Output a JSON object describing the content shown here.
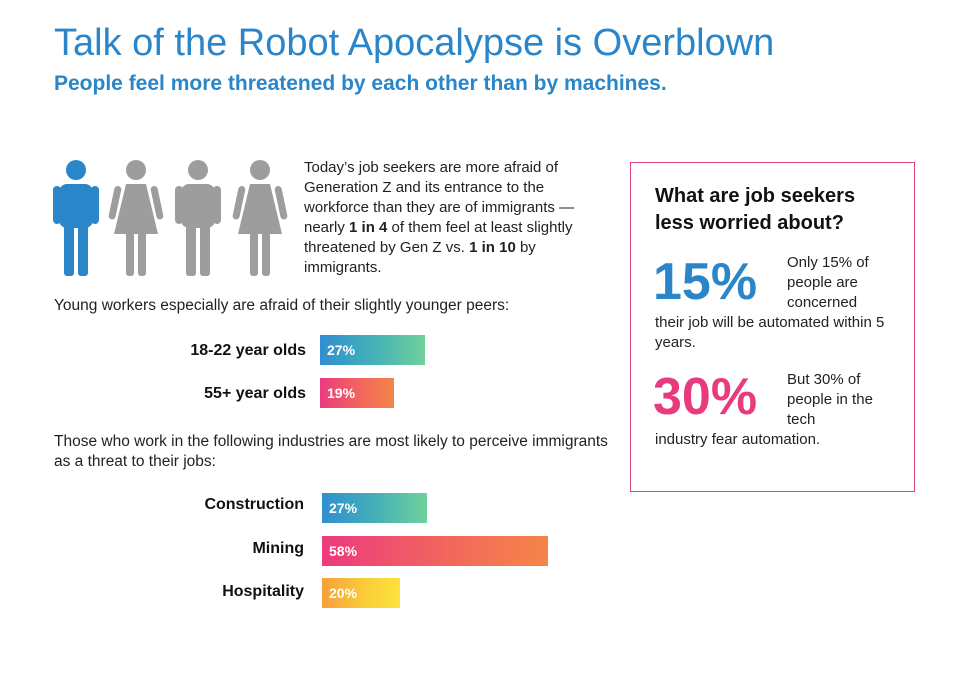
{
  "header": {
    "title": "Talk of the Robot Apocalypse is Overblown",
    "subtitle": "People feel more threatened by each other than by machines."
  },
  "intro": {
    "text_1": "Today’s job seekers are more afraid of Generation Z and its entrance to the workforce than they are of immigrants — nearly ",
    "bold_1": "1 in 4",
    "text_2": " of them feel at least slightly threatened by Gen Z vs. ",
    "bold_2": "1 in 10",
    "text_3": " by immigrants.",
    "figure_icons": [
      "man-icon",
      "woman-icon",
      "man-icon",
      "woman-icon"
    ],
    "highlight_color": "#2a86c8",
    "muted_color": "#9d9d9d"
  },
  "age_section": {
    "caption": "Young workers especially are afraid of their slightly younger peers:"
  },
  "industry_section": {
    "caption": "Those who work in the following industries are most likely to perceive immigrants as a threat to their jobs:"
  },
  "side_box": {
    "title": "What are job seekers less worried about?",
    "stat1_value": "15%",
    "stat1_small": "Only 15% of people are concerned",
    "stat1_rest": "their job will be automated within 5 years.",
    "stat1_color": "#2a86c8",
    "stat2_value": "30%",
    "stat2_small": "But 30% of people in the tech",
    "stat2_rest": "industry fear automation.",
    "stat2_color": "#e83b7d",
    "border_color": "#e04383"
  },
  "chart_data": [
    {
      "type": "bar",
      "orientation": "horizontal",
      "categories": [
        "18-22 year olds",
        "55+ year olds"
      ],
      "values": [
        27,
        19
      ],
      "value_labels": [
        "27%",
        "19%"
      ],
      "colors": [
        "blue-green gradient",
        "pink-orange gradient"
      ]
    },
    {
      "type": "bar",
      "orientation": "horizontal",
      "categories": [
        "Construction",
        "Mining",
        "Hospitality"
      ],
      "values": [
        27,
        58,
        20
      ],
      "value_labels": [
        "27%",
        "58%",
        "20%"
      ],
      "colors": [
        "blue-green gradient",
        "pink-orange gradient",
        "orange-yellow gradient"
      ]
    }
  ]
}
